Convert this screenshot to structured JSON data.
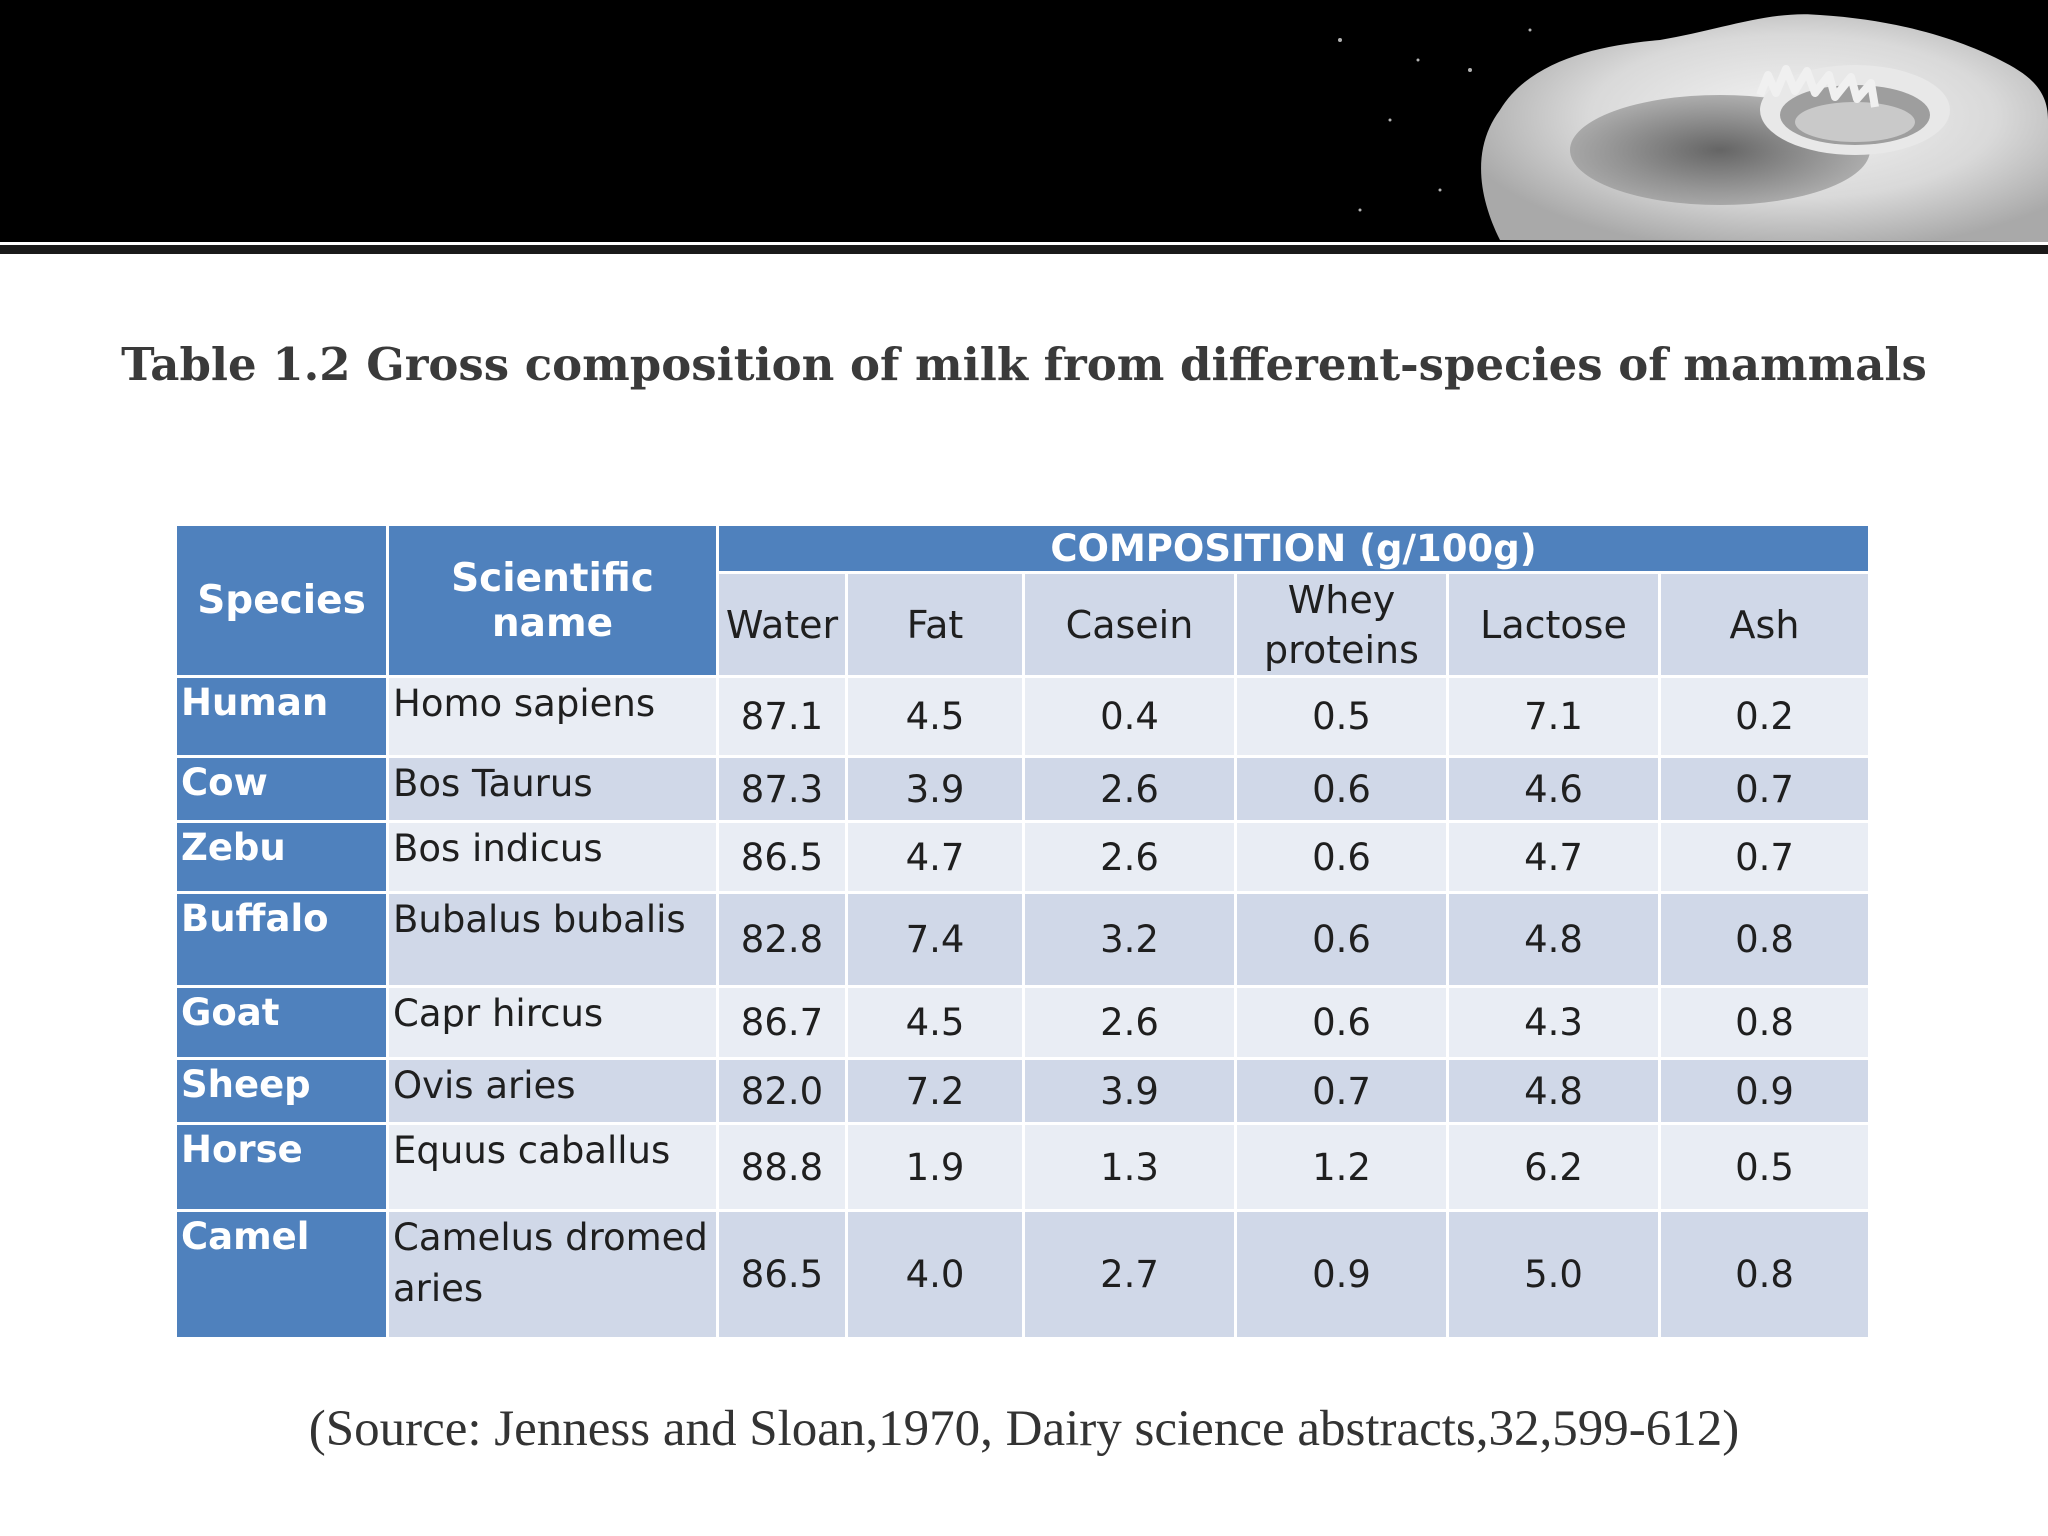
{
  "title": "Table 1.2 Gross composition of milk from different-species of mammals",
  "source": "(Source: Jenness and Sloan,1970, Dairy science abstracts,32,599-612)",
  "colors": {
    "header_blue": "#4f81bd",
    "row_light": "#e9edf4",
    "row_dark": "#d0d8e8"
  },
  "table": {
    "headers": {
      "species": "Species",
      "scientific_name": "Scientific name",
      "composition": "COMPOSITION (g/100g)",
      "water": "Water",
      "fat": "Fat",
      "casein": "Casein",
      "whey": "Whey proteins",
      "lactose": "Lactose",
      "ash": "Ash"
    },
    "rows": [
      {
        "species": "Human",
        "scientific": "Homo sapiens",
        "water": "87.1",
        "fat": "4.5",
        "casein": "0.4",
        "whey": "0.5",
        "lactose": "7.1",
        "ash": "0.2"
      },
      {
        "species": "Cow",
        "scientific": "Bos Taurus",
        "water": "87.3",
        "fat": "3.9",
        "casein": "2.6",
        "whey": "0.6",
        "lactose": "4.6",
        "ash": "0.7"
      },
      {
        "species": "Zebu",
        "scientific": "Bos indicus",
        "water": "86.5",
        "fat": "4.7",
        "casein": "2.6",
        "whey": "0.6",
        "lactose": "4.7",
        "ash": "0.7"
      },
      {
        "species": "Buffalo",
        "scientific": "Bubalus bubalis",
        "water": "82.8",
        "fat": "7.4",
        "casein": "3.2",
        "whey": "0.6",
        "lactose": "4.8",
        "ash": "0.8"
      },
      {
        "species": "Goat",
        "scientific": "Capr hircus",
        "water": "86.7",
        "fat": "4.5",
        "casein": "2.6",
        "whey": "0.6",
        "lactose": "4.3",
        "ash": "0.8"
      },
      {
        "species": "Sheep",
        "scientific": "Ovis aries",
        "water": "82.0",
        "fat": "7.2",
        "casein": "3.9",
        "whey": "0.7",
        "lactose": "4.8",
        "ash": "0.9"
      },
      {
        "species": "Horse",
        "scientific": "Equus caballus",
        "water": "88.8",
        "fat": "1.9",
        "casein": "1.3",
        "whey": "1.2",
        "lactose": "6.2",
        "ash": "0.5"
      },
      {
        "species": "Camel",
        "scientific": "Camelus dromed aries",
        "water": "86.5",
        "fat": "4.0",
        "casein": "2.7",
        "whey": "0.9",
        "lactose": "5.0",
        "ash": "0.8"
      }
    ]
  }
}
